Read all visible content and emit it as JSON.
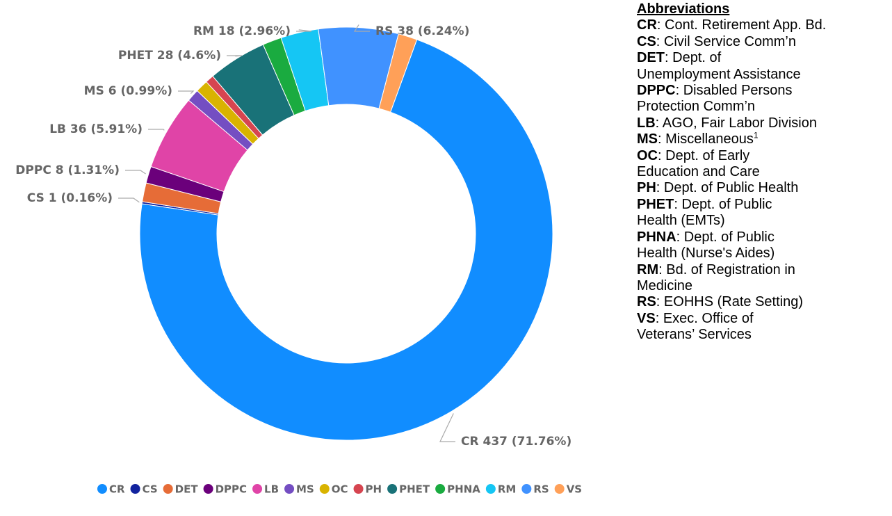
{
  "chart_data": {
    "type": "donut",
    "categories": [
      "CR",
      "CS",
      "DET",
      "DPPC",
      "LB",
      "MS",
      "OC",
      "PH",
      "PHET",
      "PHNA",
      "RM",
      "RS",
      "VS"
    ],
    "values": [
      437,
      1,
      9,
      8,
      36,
      6,
      6,
      4,
      28,
      9,
      18,
      38,
      9
    ],
    "value_labels": [
      "CR 437 (71.76%)",
      "CS 1 (0.16%)",
      null,
      "DPPC 8 (1.31%)",
      "LB 36 (5.91%)",
      "MS 6 (0.99%)",
      null,
      null,
      "PHET 28 (4.6%)",
      null,
      "RM 18 (2.96%)",
      "RS 38 (6.24%)",
      null
    ],
    "colors": [
      "#118dff",
      "#12239e",
      "#e66c37",
      "#6b007b",
      "#e044a7",
      "#744ec2",
      "#d9b300",
      "#d64550",
      "#197278",
      "#1aab40",
      "#15c6f4",
      "#4092ff",
      "#ffa058"
    ],
    "legend": "bottom"
  },
  "abbreviations": {
    "title": "Abbreviations",
    "entries": [
      {
        "abbr": "CR",
        "lines": [
          "Cont. Retirement App. Bd."
        ]
      },
      {
        "abbr": "CS",
        "lines": [
          "Civil Service Comm’n"
        ]
      },
      {
        "abbr": "DET",
        "lines": [
          "Dept. of",
          "Unemployment Assistance"
        ]
      },
      {
        "abbr": "DPPC",
        "lines": [
          "Disabled Persons",
          "Protection Comm’n"
        ]
      },
      {
        "abbr": "LB",
        "lines": [
          "AGO, Fair Labor Division"
        ]
      },
      {
        "abbr": "MS",
        "lines": [
          "Miscellaneous"
        ],
        "sup": "1"
      },
      {
        "abbr": "OC",
        "lines": [
          "Dept. of Early",
          "Education and Care"
        ]
      },
      {
        "abbr": "PH",
        "lines": [
          "Dept. of Public Health"
        ]
      },
      {
        "abbr": "PHET",
        "lines": [
          "Dept. of Public",
          "Health (EMTs)"
        ]
      },
      {
        "abbr": "PHNA",
        "lines": [
          "Dept. of Public",
          "Health (Nurse's Aides)"
        ]
      },
      {
        "abbr": "RM",
        "lines": [
          "Bd. of Registration in",
          "Medicine"
        ]
      },
      {
        "abbr": "RS",
        "lines": [
          "EOHHS (Rate Setting)"
        ]
      },
      {
        "abbr": "VS",
        "lines": [
          "Exec. Office of",
          "Veterans’ Services"
        ]
      }
    ]
  }
}
